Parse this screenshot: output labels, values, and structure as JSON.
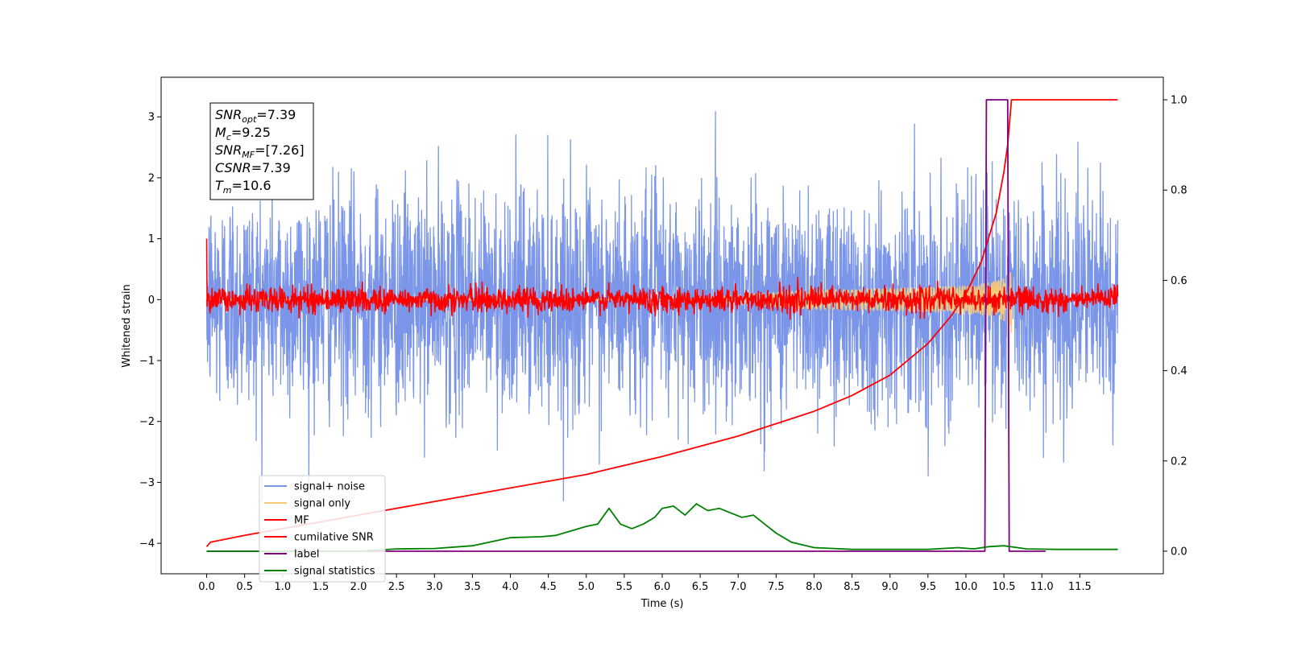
{
  "chart_data": {
    "type": "line",
    "title": "",
    "xlabel": "Time (s)",
    "ylabel": "Whitened strain",
    "ylabel_right": "",
    "xlim": [
      -0.6,
      12.6
    ],
    "ylim": [
      -4.5,
      3.65
    ],
    "ylim_right": [
      -0.05,
      1.05
    ],
    "x_ticks": [
      "0.0",
      "0.5",
      "1.0",
      "1.5",
      "2.0",
      "2.5",
      "3.0",
      "3.5",
      "4.0",
      "4.5",
      "5.0",
      "5.5",
      "6.0",
      "6.5",
      "7.0",
      "7.5",
      "8.0",
      "8.5",
      "9.0",
      "9.5",
      "10.0",
      "10.5",
      "11.0",
      "11.5"
    ],
    "y_ticks": [
      "3",
      "2",
      "1",
      "0",
      "−1",
      "−2",
      "−3",
      "−4"
    ],
    "y_ticks_right": [
      "1.0",
      "0.8",
      "0.6",
      "0.4",
      "0.2",
      "0.0"
    ],
    "grid": false,
    "legend_position": "lower-left",
    "annotation": {
      "lines": [
        {
          "base": "SNR",
          "sub": "opt",
          "value": "=7.39"
        },
        {
          "base": "M",
          "sub": "c",
          "value": "=9.25"
        },
        {
          "base": "SNR",
          "sub": "MF",
          "value": "=[7.26]"
        },
        {
          "base": "CSNR",
          "sub": "",
          "value": "=7.39"
        },
        {
          "base": "T",
          "sub": "m",
          "value": "=10.6"
        }
      ]
    },
    "series": [
      {
        "name": "signal+ noise",
        "color": "#7b96e8",
        "axis": "left",
        "kind": "noise",
        "x_range": [
          0,
          12
        ],
        "amplitude_sd": 0.9,
        "envelope_max": 3.3
      },
      {
        "name": "signal only",
        "color": "#f5c97a",
        "axis": "left",
        "kind": "chirp",
        "x_range": [
          0,
          10.6
        ],
        "peak_amplitude": 0.55
      },
      {
        "name": "MF",
        "color": "#ff0000",
        "axis": "left",
        "kind": "noise",
        "x_range": [
          0,
          12
        ],
        "amplitude_sd": 0.1,
        "envelope_max": 0.45
      },
      {
        "name": "cumilative SNR",
        "color": "#ff0000",
        "axis": "right",
        "x": [
          0,
          0.05,
          0.5,
          1,
          2,
          3,
          4,
          5,
          6,
          7,
          8,
          8.5,
          9,
          9.5,
          9.8,
          10,
          10.2,
          10.4,
          10.5,
          10.55,
          10.6,
          12
        ],
        "values": [
          0.01,
          0.02,
          0.035,
          0.05,
          0.08,
          0.11,
          0.14,
          0.17,
          0.21,
          0.255,
          0.31,
          0.345,
          0.39,
          0.46,
          0.52,
          0.57,
          0.64,
          0.75,
          0.84,
          0.9,
          1.0,
          1.0
        ]
      },
      {
        "name": "label",
        "color": "#800080",
        "axis": "right",
        "x": [
          0,
          10.25,
          10.27,
          10.55,
          10.57,
          11.05
        ],
        "values": [
          0,
          0,
          1,
          1,
          0,
          0
        ]
      },
      {
        "name": "signal statistics",
        "color": "#008000",
        "axis": "right",
        "x": [
          0,
          2,
          2.5,
          3,
          3.5,
          4,
          4.4,
          4.6,
          4.8,
          5,
          5.15,
          5.3,
          5.45,
          5.6,
          5.75,
          5.9,
          6.0,
          6.15,
          6.3,
          6.45,
          6.6,
          6.75,
          6.9,
          7.05,
          7.2,
          7.35,
          7.5,
          7.7,
          8,
          8.5,
          9,
          9.5,
          9.9,
          10.1,
          10.3,
          10.5,
          10.8,
          11.2,
          12
        ],
        "values": [
          0.0,
          0.0,
          0.005,
          0.006,
          0.012,
          0.03,
          0.032,
          0.035,
          0.045,
          0.055,
          0.06,
          0.095,
          0.06,
          0.05,
          0.06,
          0.075,
          0.095,
          0.1,
          0.08,
          0.105,
          0.09,
          0.095,
          0.085,
          0.075,
          0.08,
          0.06,
          0.04,
          0.02,
          0.008,
          0.004,
          0.004,
          0.004,
          0.008,
          0.005,
          0.01,
          0.012,
          0.005,
          0.004,
          0.004
        ]
      }
    ]
  }
}
